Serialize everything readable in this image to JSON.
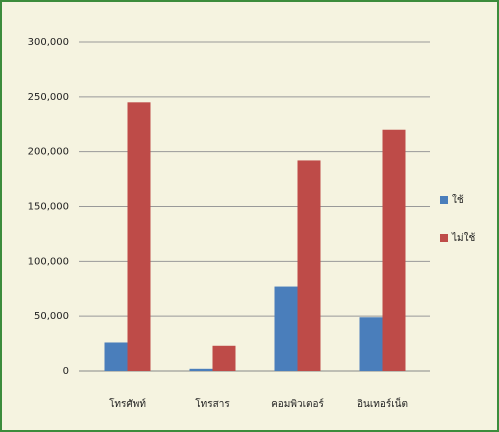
{
  "chart_data": {
    "type": "bar",
    "categories": [
      "โทรศัพท์",
      "โทรสาร",
      "คอมพิวเตอร์",
      "อินเทอร์เน็ต"
    ],
    "series": [
      {
        "name": "ใช้",
        "color": "#4a7ebb",
        "values": [
          26000,
          2000,
          77000,
          49000
        ]
      },
      {
        "name": "ไม่ใช้",
        "color": "#be4b48",
        "values": [
          245000,
          23000,
          192000,
          220000
        ]
      }
    ],
    "ylim": [
      0,
      300000
    ],
    "yticks": [
      0,
      {
        "value": 50000,
        "label": "50,000"
      },
      {
        "value": 100000,
        "label": "100,000"
      },
      {
        "value": 150000,
        "label": "150,000"
      },
      {
        "value": 200000,
        "label": "200,000"
      },
      {
        "value": 250000,
        "label": "250,000"
      },
      {
        "value": 300000,
        "label": "300,000"
      }
    ],
    "grid": true
  }
}
